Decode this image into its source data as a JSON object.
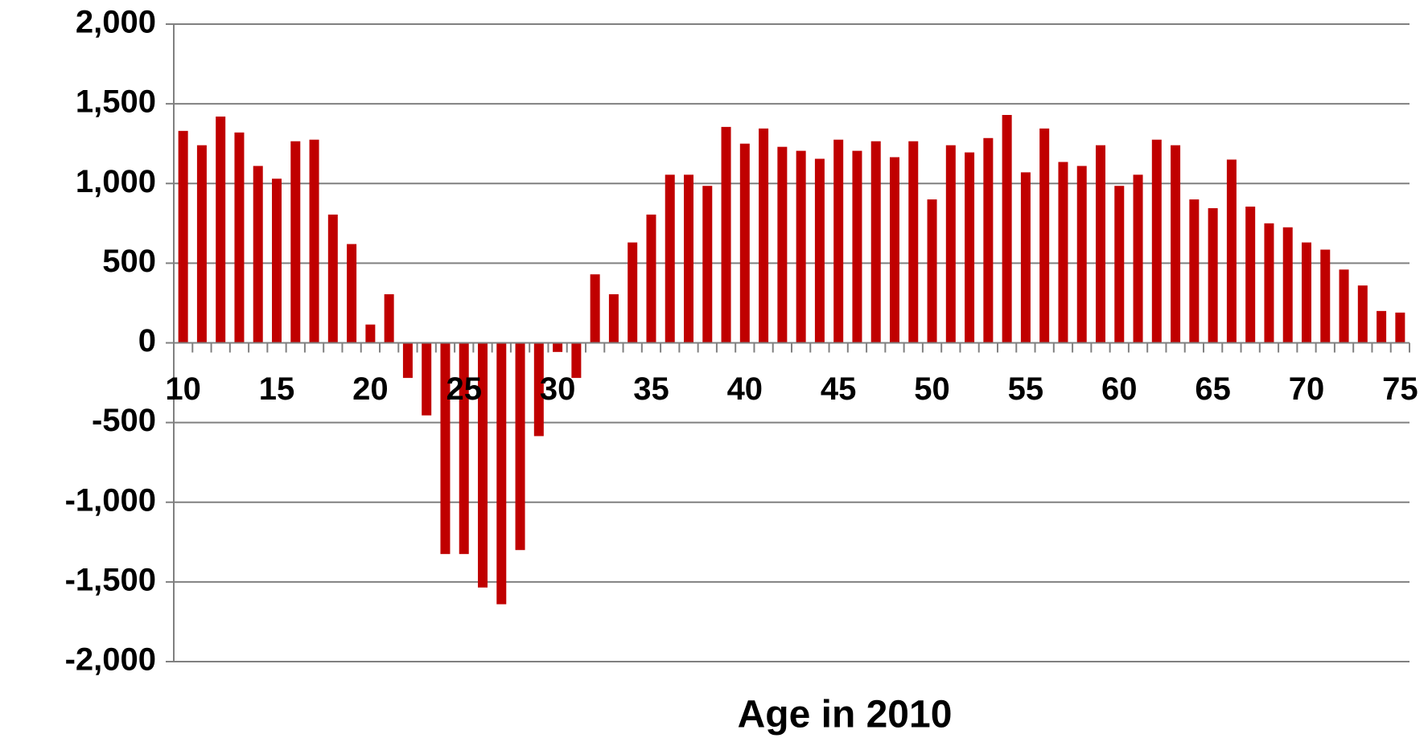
{
  "chart_data": {
    "type": "bar",
    "x_label": "Age in 2010",
    "categories": [
      "10",
      null,
      null,
      null,
      null,
      "15",
      null,
      null,
      null,
      null,
      "20",
      null,
      null,
      null,
      null,
      "25",
      null,
      null,
      null,
      null,
      "30",
      null,
      null,
      null,
      null,
      "35",
      null,
      null,
      null,
      null,
      "40",
      null,
      null,
      null,
      null,
      "45",
      null,
      null,
      null,
      null,
      "50",
      null,
      null,
      null,
      null,
      "55",
      null,
      null,
      null,
      null,
      "60",
      null,
      null,
      null,
      null,
      "65",
      null,
      null,
      null,
      null,
      "70",
      null,
      null,
      null,
      null,
      "75"
    ],
    "values": [
      1330,
      1240,
      1420,
      1320,
      1110,
      1030,
      1265,
      1275,
      805,
      620,
      115,
      305,
      -220,
      -455,
      -1325,
      -1325,
      -1535,
      -1640,
      -1300,
      -585,
      -57,
      -220,
      430,
      305,
      630,
      805,
      1055,
      1055,
      985,
      1355,
      1250,
      1345,
      1230,
      1205,
      1155,
      1275,
      1205,
      1265,
      1165,
      1265,
      900,
      1240,
      1195,
      1285,
      1430,
      1070,
      1345,
      1135,
      1110,
      1240,
      985,
      1055,
      1275,
      1240,
      900,
      845,
      1150,
      855,
      750,
      725,
      630,
      585,
      460,
      360,
      200,
      190
    ],
    "color": "#c00000",
    "ylim": [
      -2000,
      2000
    ],
    "yticks": [
      {
        "value": -2000,
        "label": "-2,000"
      },
      {
        "value": -1500,
        "label": "-1,500"
      },
      {
        "value": -1000,
        "label": "-1,000"
      },
      {
        "value": -500,
        "label": "-500"
      },
      0,
      500,
      {
        "value": 1000,
        "label": "1,000"
      },
      {
        "value": 1500,
        "label": "1,500"
      },
      {
        "value": 2000,
        "label": "2,000"
      }
    ],
    "grid": true
  }
}
